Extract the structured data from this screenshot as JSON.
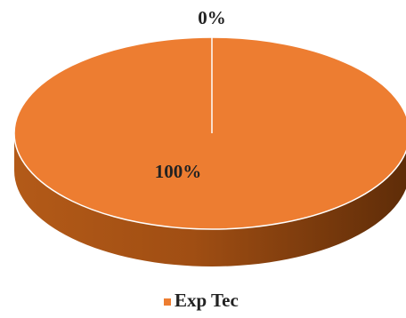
{
  "chart_data": {
    "type": "pie",
    "categories": [
      null,
      "Exp Tec"
    ],
    "values": [
      0,
      100
    ],
    "value_labels": [
      "0%",
      "100%"
    ],
    "color": "#ed7d31",
    "legend": "bottom"
  }
}
